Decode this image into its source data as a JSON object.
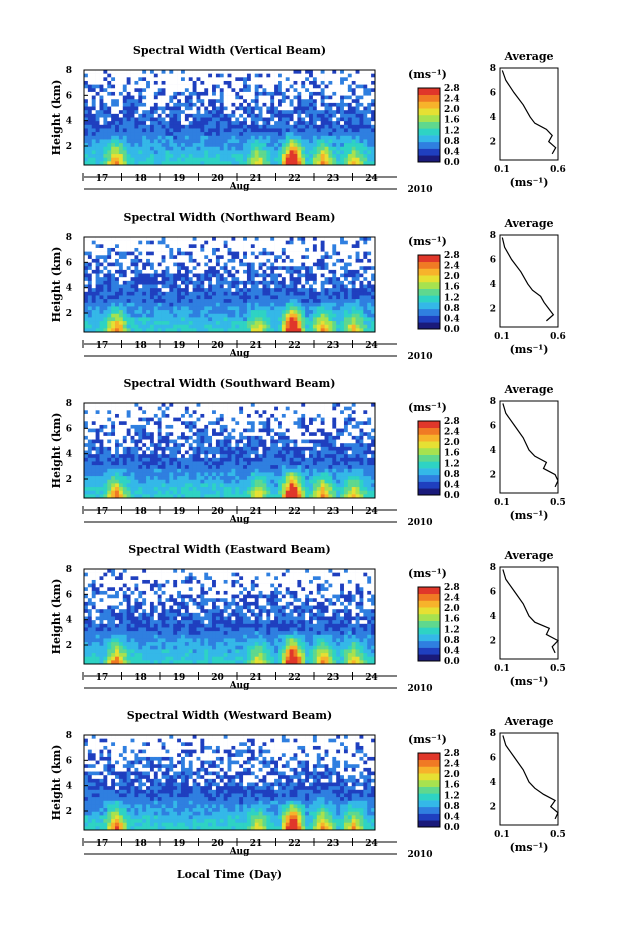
{
  "chart_data": {
    "type": "heatmap",
    "panels": [
      {
        "title": "Spectral Width (Vertical Beam)",
        "cbar_ticks": [
          "2.8",
          "2.4",
          "2.0",
          "1.6",
          "1.2",
          "0.8",
          "0.4",
          "0.0"
        ],
        "avg_title": "Average",
        "avg_xticks": [
          "0.1",
          "0.6"
        ],
        "avg_profile": {
          "height_km": [
            1.0,
            1.5,
            2.0,
            2.5,
            3.0,
            3.5,
            4.0,
            5.0,
            6.0,
            7.0,
            7.8
          ],
          "width_ms": [
            0.55,
            0.58,
            0.52,
            0.55,
            0.5,
            0.4,
            0.36,
            0.3,
            0.22,
            0.15,
            0.12
          ]
        }
      },
      {
        "title": "Spectral Width (Northward Beam)",
        "cbar_ticks": [
          "2.8",
          "2.4",
          "2.0",
          "1.6",
          "1.2",
          "0.8",
          "0.4",
          "0.0"
        ],
        "avg_title": "Average",
        "avg_xticks": [
          "0.1",
          "0.6"
        ],
        "avg_profile": {
          "height_km": [
            1.0,
            1.5,
            2.0,
            2.5,
            3.0,
            3.5,
            4.0,
            5.0,
            6.0,
            7.0,
            7.8
          ],
          "width_ms": [
            0.5,
            0.56,
            0.52,
            0.48,
            0.45,
            0.38,
            0.34,
            0.28,
            0.2,
            0.14,
            0.12
          ]
        }
      },
      {
        "title": "Spectral Width (Southward Beam)",
        "cbar_ticks": [
          "2.8",
          "2.4",
          "2.0",
          "1.6",
          "1.2",
          "0.8",
          "0.4",
          "0.0"
        ],
        "avg_title": "Average",
        "avg_xticks": [
          "0.1",
          "0.5"
        ],
        "avg_profile": {
          "height_km": [
            1.0,
            1.5,
            2.0,
            2.5,
            3.0,
            3.5,
            4.0,
            5.0,
            6.0,
            7.0,
            7.8
          ],
          "width_ms": [
            0.48,
            0.5,
            0.48,
            0.4,
            0.42,
            0.34,
            0.3,
            0.26,
            0.2,
            0.14,
            0.12
          ]
        }
      },
      {
        "title": "Spectral Width (Eastward Beam)",
        "cbar_ticks": [
          "2.8",
          "2.4",
          "2.0",
          "1.6",
          "1.2",
          "0.8",
          "0.4",
          "0.0"
        ],
        "avg_title": "Average",
        "avg_xticks": [
          "0.1",
          "0.5"
        ],
        "avg_profile": {
          "height_km": [
            1.0,
            1.5,
            2.0,
            2.5,
            3.0,
            3.5,
            4.0,
            5.0,
            6.0,
            7.0,
            7.8
          ],
          "width_ms": [
            0.48,
            0.46,
            0.5,
            0.42,
            0.44,
            0.34,
            0.3,
            0.26,
            0.2,
            0.14,
            0.12
          ]
        }
      },
      {
        "title": "Spectral Width (Westward Beam)",
        "cbar_ticks": [
          "2.8",
          "2.4",
          "2.0",
          "1.6",
          "1.2",
          "0.8",
          "0.4",
          "0.0"
        ],
        "avg_title": "Average",
        "avg_xticks": [
          "0.1",
          "0.5"
        ],
        "avg_profile": {
          "height_km": [
            1.0,
            1.5,
            2.0,
            2.5,
            3.0,
            3.5,
            4.0,
            5.0,
            6.0,
            7.0,
            7.8
          ],
          "width_ms": [
            0.48,
            0.5,
            0.45,
            0.48,
            0.4,
            0.34,
            0.3,
            0.26,
            0.2,
            0.14,
            0.12
          ]
        }
      }
    ],
    "ylabel": "Height (km)",
    "y_ticks": [
      "2",
      "4",
      "6",
      "8"
    ],
    "ylim_km": [
      0.5,
      8
    ],
    "day_ticks": [
      "17",
      "18",
      "19",
      "20",
      "21",
      "22",
      "23",
      "24"
    ],
    "month_label": "Aug",
    "year_label": "2010",
    "xlabel": "Local Time (Day)",
    "cbar_unit": "(ms⁻¹)",
    "avg_unit": "(ms⁻¹)",
    "avg_ylim_km": [
      0.5,
      8
    ],
    "avg_ticks": [
      "2",
      "4",
      "6",
      "8"
    ],
    "colormap": [
      "#1a1a7a",
      "#1f3fbf",
      "#2f7fe0",
      "#34b8e8",
      "#2ed3c4",
      "#5fd88e",
      "#a7e24f",
      "#e6e033",
      "#f7b32b",
      "#f07a24",
      "#e0372a"
    ],
    "background_color": "#3a4cc0"
  }
}
